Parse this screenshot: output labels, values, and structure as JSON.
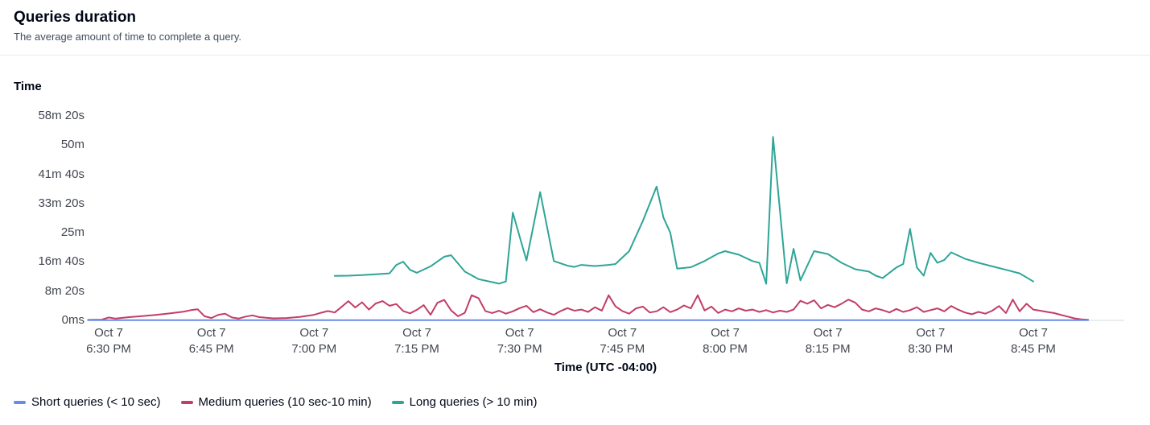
{
  "header": {
    "title": "Queries duration",
    "subtitle": "The average amount of time to complete a query."
  },
  "chart_data": {
    "type": "line",
    "title": "Queries duration",
    "ylabel": "Time",
    "xlabel": "Time (UTC -04:00)",
    "grid": false,
    "legend_position": "bottom-left",
    "units": {
      "x": "minutes after 6:30 PM",
      "y": "seconds"
    },
    "x_domain_minutes": [
      -3.2,
      148.3
    ],
    "y_domain_seconds": [
      0,
      3500
    ],
    "y_ticks": [
      {
        "seconds": 0,
        "label": "0ms"
      },
      {
        "seconds": 500,
        "label": "8m 20s"
      },
      {
        "seconds": 1000,
        "label": "16m 40s"
      },
      {
        "seconds": 1500,
        "label": "25m"
      },
      {
        "seconds": 2000,
        "label": "33m 20s"
      },
      {
        "seconds": 2500,
        "label": "41m 40s"
      },
      {
        "seconds": 3000,
        "label": "50m"
      },
      {
        "seconds": 3500,
        "label": "58m 20s"
      }
    ],
    "x_ticks": [
      {
        "minute": 0,
        "date": "Oct 7",
        "time": "6:30 PM"
      },
      {
        "minute": 15,
        "date": "Oct 7",
        "time": "6:45 PM"
      },
      {
        "minute": 30,
        "date": "Oct 7",
        "time": "7:00 PM"
      },
      {
        "minute": 45,
        "date": "Oct 7",
        "time": "7:15 PM"
      },
      {
        "minute": 60,
        "date": "Oct 7",
        "time": "7:30 PM"
      },
      {
        "minute": 75,
        "date": "Oct 7",
        "time": "7:45 PM"
      },
      {
        "minute": 90,
        "date": "Oct 7",
        "time": "8:00 PM"
      },
      {
        "minute": 105,
        "date": "Oct 7",
        "time": "8:15 PM"
      },
      {
        "minute": 120,
        "date": "Oct 7",
        "time": "8:30 PM"
      },
      {
        "minute": 135,
        "date": "Oct 7",
        "time": "8:45 PM"
      }
    ],
    "series": [
      {
        "name": "Short queries (< 10 sec)",
        "color": "#688ae8",
        "points": [
          [
            -3,
            4
          ],
          [
            15,
            4
          ],
          [
            30,
            4
          ],
          [
            45,
            4
          ],
          [
            60,
            4
          ],
          [
            75,
            4
          ],
          [
            90,
            4
          ],
          [
            105,
            4
          ],
          [
            120,
            4
          ],
          [
            135,
            4
          ],
          [
            143,
            4
          ]
        ]
      },
      {
        "name": "Medium queries (10 sec-10 min)",
        "color": "#c33d69",
        "points": [
          [
            -3,
            8
          ],
          [
            -1,
            12
          ],
          [
            0,
            50
          ],
          [
            1,
            30
          ],
          [
            3,
            55
          ],
          [
            5,
            75
          ],
          [
            7,
            95
          ],
          [
            9,
            120
          ],
          [
            11,
            150
          ],
          [
            12,
            175
          ],
          [
            13,
            190
          ],
          [
            14,
            70
          ],
          [
            15,
            40
          ],
          [
            16,
            95
          ],
          [
            17,
            115
          ],
          [
            18,
            50
          ],
          [
            19,
            32
          ],
          [
            20,
            65
          ],
          [
            21,
            85
          ],
          [
            22,
            55
          ],
          [
            24,
            35
          ],
          [
            26,
            40
          ],
          [
            28,
            60
          ],
          [
            30,
            95
          ],
          [
            31,
            130
          ],
          [
            32,
            160
          ],
          [
            33,
            135
          ],
          [
            34,
            230
          ],
          [
            35,
            330
          ],
          [
            36,
            220
          ],
          [
            37,
            310
          ],
          [
            38,
            185
          ],
          [
            39,
            290
          ],
          [
            40,
            330
          ],
          [
            41,
            250
          ],
          [
            42,
            280
          ],
          [
            43,
            160
          ],
          [
            44,
            120
          ],
          [
            45,
            180
          ],
          [
            46,
            260
          ],
          [
            47,
            95
          ],
          [
            48,
            300
          ],
          [
            49,
            350
          ],
          [
            50,
            170
          ],
          [
            51,
            70
          ],
          [
            52,
            130
          ],
          [
            53,
            430
          ],
          [
            54,
            380
          ],
          [
            55,
            160
          ],
          [
            56,
            125
          ],
          [
            57,
            165
          ],
          [
            58,
            115
          ],
          [
            59,
            155
          ],
          [
            60,
            210
          ],
          [
            61,
            250
          ],
          [
            62,
            140
          ],
          [
            63,
            190
          ],
          [
            64,
            135
          ],
          [
            65,
            95
          ],
          [
            66,
            160
          ],
          [
            67,
            210
          ],
          [
            68,
            165
          ],
          [
            69,
            185
          ],
          [
            70,
            145
          ],
          [
            71,
            225
          ],
          [
            72,
            165
          ],
          [
            73,
            430
          ],
          [
            74,
            240
          ],
          [
            75,
            160
          ],
          [
            76,
            115
          ],
          [
            77,
            205
          ],
          [
            78,
            235
          ],
          [
            79,
            135
          ],
          [
            80,
            155
          ],
          [
            81,
            225
          ],
          [
            82,
            140
          ],
          [
            83,
            185
          ],
          [
            84,
            255
          ],
          [
            85,
            205
          ],
          [
            86,
            430
          ],
          [
            87,
            170
          ],
          [
            88,
            235
          ],
          [
            89,
            125
          ],
          [
            90,
            185
          ],
          [
            91,
            155
          ],
          [
            92,
            205
          ],
          [
            93,
            165
          ],
          [
            94,
            185
          ],
          [
            95,
            145
          ],
          [
            96,
            175
          ],
          [
            97,
            135
          ],
          [
            98,
            165
          ],
          [
            99,
            145
          ],
          [
            100,
            185
          ],
          [
            101,
            335
          ],
          [
            102,
            285
          ],
          [
            103,
            345
          ],
          [
            104,
            205
          ],
          [
            105,
            265
          ],
          [
            106,
            225
          ],
          [
            107,
            285
          ],
          [
            108,
            355
          ],
          [
            109,
            305
          ],
          [
            110,
            185
          ],
          [
            111,
            155
          ],
          [
            112,
            205
          ],
          [
            113,
            175
          ],
          [
            114,
            135
          ],
          [
            115,
            195
          ],
          [
            116,
            145
          ],
          [
            117,
            175
          ],
          [
            118,
            225
          ],
          [
            119,
            145
          ],
          [
            120,
            175
          ],
          [
            121,
            205
          ],
          [
            122,
            155
          ],
          [
            123,
            245
          ],
          [
            124,
            185
          ],
          [
            125,
            135
          ],
          [
            126,
            105
          ],
          [
            127,
            145
          ],
          [
            128,
            115
          ],
          [
            129,
            165
          ],
          [
            130,
            245
          ],
          [
            131,
            125
          ],
          [
            132,
            355
          ],
          [
            133,
            155
          ],
          [
            134,
            285
          ],
          [
            135,
            185
          ],
          [
            136,
            165
          ],
          [
            137,
            145
          ],
          [
            138,
            125
          ],
          [
            139,
            95
          ],
          [
            140,
            65
          ],
          [
            141,
            35
          ],
          [
            142,
            18
          ],
          [
            143,
            10
          ]
        ]
      },
      {
        "name": "Long queries (> 10 min)",
        "color": "#2ea597",
        "points": [
          [
            33,
            760
          ],
          [
            35,
            765
          ],
          [
            37,
            775
          ],
          [
            39,
            790
          ],
          [
            41,
            805
          ],
          [
            42,
            950
          ],
          [
            43,
            1005
          ],
          [
            44,
            865
          ],
          [
            45,
            815
          ],
          [
            47,
            925
          ],
          [
            49,
            1090
          ],
          [
            50,
            1115
          ],
          [
            52,
            835
          ],
          [
            54,
            705
          ],
          [
            56,
            655
          ],
          [
            57,
            628
          ],
          [
            58,
            665
          ],
          [
            59,
            1845
          ],
          [
            61,
            1025
          ],
          [
            63,
            2195
          ],
          [
            65,
            1015
          ],
          [
            67,
            935
          ],
          [
            68,
            915
          ],
          [
            69,
            950
          ],
          [
            71,
            930
          ],
          [
            73,
            950
          ],
          [
            74,
            965
          ],
          [
            76,
            1185
          ],
          [
            78,
            1705
          ],
          [
            80,
            2290
          ],
          [
            81,
            1760
          ],
          [
            82,
            1500
          ],
          [
            83,
            885
          ],
          [
            85,
            910
          ],
          [
            87,
            1015
          ],
          [
            89,
            1145
          ],
          [
            90,
            1185
          ],
          [
            92,
            1125
          ],
          [
            94,
            1015
          ],
          [
            95,
            985
          ],
          [
            96,
            625
          ],
          [
            97,
            3140
          ],
          [
            99,
            635
          ],
          [
            100,
            1225
          ],
          [
            101,
            685
          ],
          [
            103,
            1185
          ],
          [
            105,
            1135
          ],
          [
            107,
            985
          ],
          [
            109,
            875
          ],
          [
            111,
            835
          ],
          [
            112,
            765
          ],
          [
            113,
            725
          ],
          [
            115,
            905
          ],
          [
            116,
            965
          ],
          [
            117,
            1565
          ],
          [
            118,
            905
          ],
          [
            119,
            765
          ],
          [
            120,
            1155
          ],
          [
            121,
            985
          ],
          [
            122,
            1035
          ],
          [
            123,
            1165
          ],
          [
            125,
            1055
          ],
          [
            127,
            985
          ],
          [
            129,
            925
          ],
          [
            131,
            865
          ],
          [
            133,
            805
          ],
          [
            135,
            665
          ]
        ]
      }
    ]
  }
}
